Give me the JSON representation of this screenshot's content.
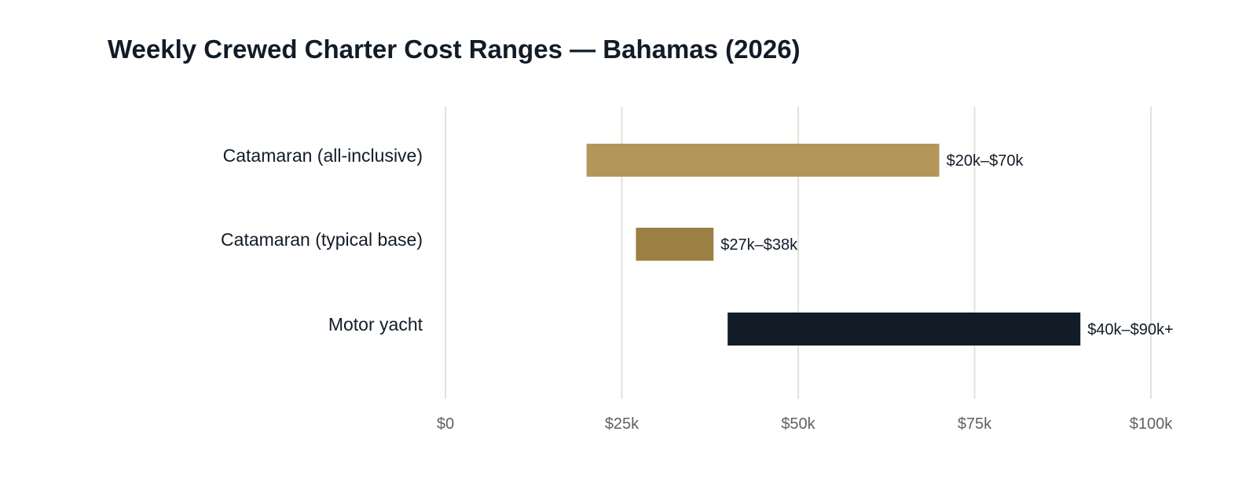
{
  "chart_data": {
    "type": "bar",
    "orientation": "horizontal",
    "subtype": "floating-range",
    "title": "Weekly Crewed Charter Cost Ranges — Bahamas (2026)",
    "xlabel": "",
    "ylabel": "",
    "xlim": [
      0,
      100000
    ],
    "grid": true,
    "legend": "none",
    "ticks": [
      {
        "value": 0,
        "label": "$0"
      },
      {
        "value": 25000,
        "label": "$25k"
      },
      {
        "value": 50000,
        "label": "$50k"
      },
      {
        "value": 75000,
        "label": "$75k"
      },
      {
        "value": 100000,
        "label": "$100k"
      }
    ],
    "categories": [
      "Catamaran (all-inclusive)",
      "Catamaran (typical base)",
      "Motor yacht"
    ],
    "ranges": [
      {
        "category": "Catamaran (all-inclusive)",
        "low": 20000,
        "high": 70000,
        "label": "$20k–$70k",
        "color": "#b5965a"
      },
      {
        "category": "Catamaran (typical base)",
        "low": 27000,
        "high": 38000,
        "label": "$27k–$38k",
        "color": "#9c8043"
      },
      {
        "category": "Motor yacht",
        "low": 40000,
        "high": 90000,
        "label": "$40k–$90k+",
        "color": "#121c27"
      }
    ]
  }
}
